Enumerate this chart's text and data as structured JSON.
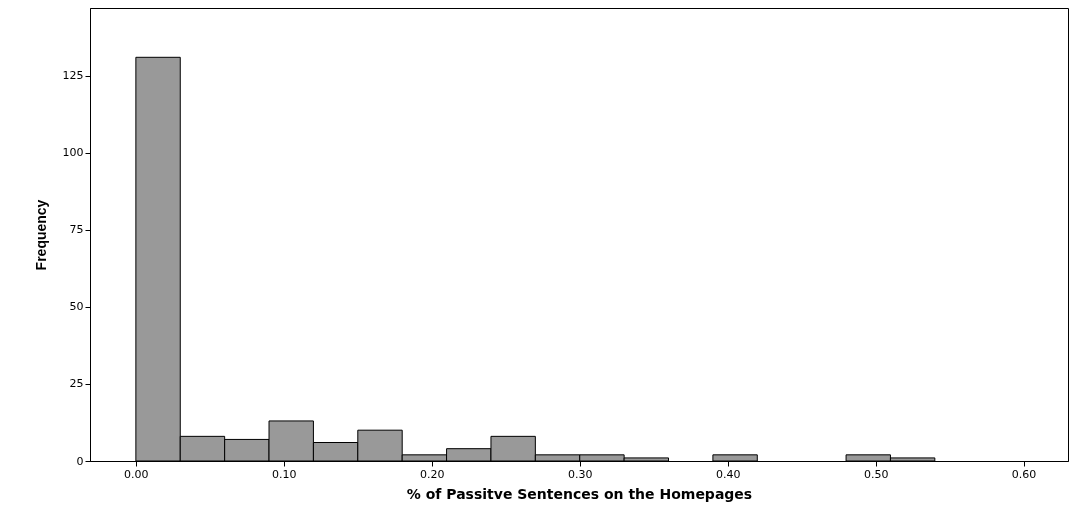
{
  "chart_data": {
    "type": "histogram",
    "xlabel": "% of Passitve Sentences on the Homepages",
    "ylabel": "Frequency",
    "bins": [
      0,
      0.03,
      0.06,
      0.09,
      0.12,
      0.15,
      0.18,
      0.21,
      0.24,
      0.27,
      0.3,
      0.33,
      0.36,
      0.39,
      0.42,
      0.45,
      0.48,
      0.51,
      0.54
    ],
    "values": [
      131,
      8,
      7,
      13,
      6,
      10,
      2,
      4,
      8,
      2,
      2,
      1,
      0,
      2,
      0,
      0,
      2,
      1
    ],
    "color": "#999999",
    "xlim": [
      -0.031,
      0.63
    ],
    "xticks": [
      {
        "value": 0,
        "label": "0.00"
      },
      {
        "value": 0.1,
        "label": "0.10"
      },
      {
        "value": 0.2,
        "label": "0.20"
      },
      {
        "value": 0.3,
        "label": "0.30"
      },
      {
        "value": 0.4,
        "label": "0.40"
      },
      {
        "value": 0.5,
        "label": "0.50"
      },
      {
        "value": 0.6,
        "label": "0.60"
      }
    ],
    "ylim": [
      0,
      147
    ],
    "yticks": [
      0,
      25,
      50,
      75,
      100,
      125
    ],
    "grid": false
  }
}
